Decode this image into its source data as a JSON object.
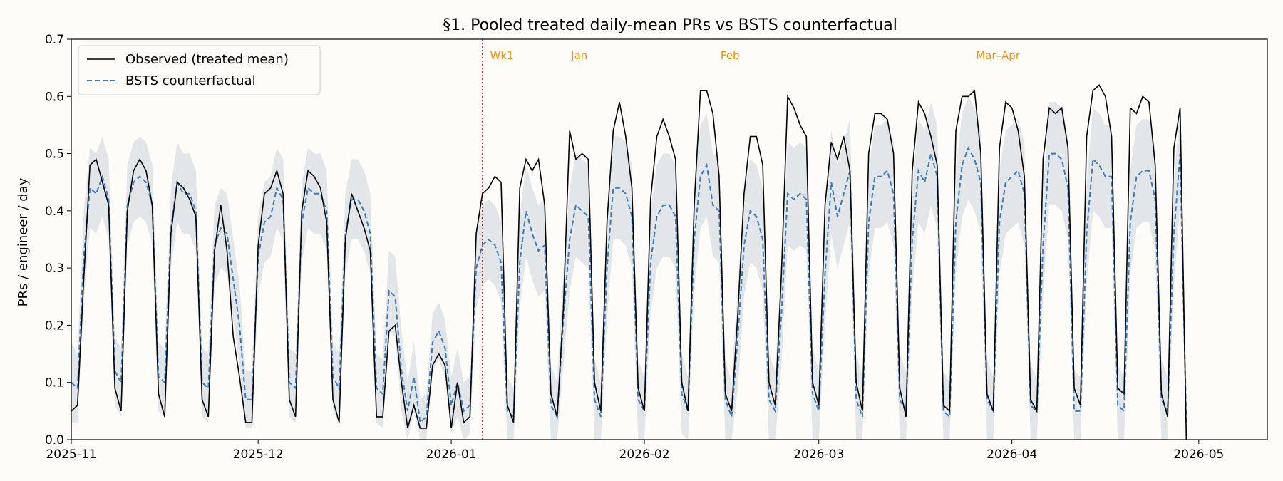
{
  "chart_data": {
    "type": "line",
    "title": "§1. Pooled treated daily-mean PRs vs BSTS counterfactual",
    "ylabel": "PRs / engineer / day",
    "xlabel": "",
    "xlim": [
      "2025-11-01",
      "2026-05-12"
    ],
    "ylim": [
      0,
      0.7
    ],
    "yticks": [
      0.0,
      0.1,
      0.2,
      0.3,
      0.4,
      0.5,
      0.6,
      0.7
    ],
    "yticklabels": [
      "0.0",
      "0.1",
      "0.2",
      "0.3",
      "0.4",
      "0.5",
      "0.6",
      "0.7"
    ],
    "xticks": [
      "2025-11-01",
      "2025-12-01",
      "2026-01-01",
      "2026-02-01",
      "2026-03-01",
      "2026-04-01",
      "2026-05-01"
    ],
    "xticklabels": [
      "2025-11",
      "2025-12",
      "2026-01",
      "2026-02",
      "2026-03",
      "2026-04",
      "2026-05"
    ],
    "grid": false,
    "legend_position": "top-left",
    "colors": {
      "observed": "#000000",
      "counterfactual": "#3d7ab8",
      "band": "#c7d0d8",
      "intervention": "#c62828",
      "annotation": "#f0920a"
    },
    "intervention_date": "2026-01-06",
    "annotations": [
      {
        "text": "Wk1",
        "date": "2026-01-07"
      },
      {
        "text": "Jan",
        "date": "2026-01-20"
      },
      {
        "text": "Feb",
        "date": "2026-02-13"
      },
      {
        "text": "Mar–Apr",
        "date": "2026-03-26"
      }
    ],
    "x_start": "2025-11-01",
    "series": [
      {
        "name": "Observed (treated mean)",
        "style": "solid",
        "values": [
          0.05,
          0.06,
          0.28,
          0.48,
          0.49,
          0.45,
          0.41,
          0.09,
          0.05,
          0.4,
          0.47,
          0.49,
          0.47,
          0.41,
          0.08,
          0.04,
          0.36,
          0.45,
          0.44,
          0.42,
          0.39,
          0.07,
          0.04,
          0.33,
          0.41,
          0.33,
          0.18,
          0.11,
          0.03,
          0.03,
          0.34,
          0.43,
          0.44,
          0.47,
          0.43,
          0.07,
          0.04,
          0.4,
          0.47,
          0.46,
          0.44,
          0.38,
          0.07,
          0.03,
          0.35,
          0.43,
          0.4,
          0.37,
          0.33,
          0.04,
          0.04,
          0.19,
          0.2,
          0.1,
          0.02,
          0.06,
          0.02,
          0.02,
          0.13,
          0.15,
          0.13,
          0.02,
          0.1,
          0.03,
          0.04,
          0.36,
          0.43,
          0.44,
          0.46,
          0.45,
          0.06,
          0.03,
          0.44,
          0.49,
          0.47,
          0.49,
          0.41,
          0.08,
          0.04,
          0.23,
          0.54,
          0.49,
          0.5,
          0.49,
          0.1,
          0.05,
          0.38,
          0.54,
          0.59,
          0.53,
          0.44,
          0.09,
          0.05,
          0.42,
          0.53,
          0.56,
          0.53,
          0.49,
          0.1,
          0.05,
          0.41,
          0.61,
          0.61,
          0.57,
          0.46,
          0.08,
          0.05,
          0.22,
          0.43,
          0.53,
          0.53,
          0.48,
          0.1,
          0.06,
          0.29,
          0.6,
          0.58,
          0.55,
          0.53,
          0.1,
          0.06,
          0.41,
          0.52,
          0.49,
          0.53,
          0.47,
          0.1,
          0.05,
          0.5,
          0.57,
          0.57,
          0.56,
          0.5,
          0.09,
          0.04,
          0.47,
          0.59,
          0.57,
          0.53,
          0.48,
          0.06,
          0.05,
          0.54,
          0.6,
          0.6,
          0.61,
          0.5,
          0.08,
          0.05,
          0.51,
          0.59,
          0.58,
          0.54,
          0.46,
          0.07,
          0.05,
          0.49,
          0.58,
          0.57,
          0.58,
          0.51,
          0.09,
          0.06,
          0.53,
          0.61,
          0.62,
          0.6,
          0.53,
          0.09,
          0.08,
          0.58,
          0.57,
          0.6,
          0.59,
          0.48,
          0.08,
          0.04,
          0.51,
          0.58,
          0.0
        ]
      },
      {
        "name": "BSTS counterfactual",
        "style": "dashed",
        "values": [
          0.1,
          0.09,
          0.32,
          0.44,
          0.43,
          0.46,
          0.42,
          0.12,
          0.1,
          0.41,
          0.45,
          0.46,
          0.45,
          0.41,
          0.11,
          0.1,
          0.37,
          0.45,
          0.43,
          0.43,
          0.4,
          0.1,
          0.09,
          0.34,
          0.37,
          0.36,
          0.28,
          0.2,
          0.07,
          0.07,
          0.32,
          0.38,
          0.39,
          0.44,
          0.42,
          0.1,
          0.09,
          0.38,
          0.44,
          0.43,
          0.43,
          0.4,
          0.11,
          0.09,
          0.36,
          0.42,
          0.42,
          0.4,
          0.36,
          0.09,
          0.08,
          0.26,
          0.25,
          0.12,
          0.05,
          0.11,
          0.03,
          0.04,
          0.17,
          0.19,
          0.16,
          0.06,
          0.1,
          0.05,
          0.06,
          0.3,
          0.34,
          0.35,
          0.34,
          0.31,
          0.05,
          0.04,
          0.31,
          0.4,
          0.36,
          0.33,
          0.34,
          0.06,
          0.04,
          0.21,
          0.35,
          0.41,
          0.4,
          0.39,
          0.07,
          0.04,
          0.3,
          0.44,
          0.44,
          0.43,
          0.39,
          0.07,
          0.05,
          0.31,
          0.39,
          0.41,
          0.41,
          0.39,
          0.08,
          0.05,
          0.35,
          0.46,
          0.48,
          0.41,
          0.4,
          0.07,
          0.04,
          0.18,
          0.34,
          0.4,
          0.39,
          0.35,
          0.07,
          0.05,
          0.22,
          0.43,
          0.42,
          0.43,
          0.42,
          0.08,
          0.05,
          0.29,
          0.45,
          0.39,
          0.43,
          0.47,
          0.07,
          0.04,
          0.38,
          0.46,
          0.46,
          0.47,
          0.43,
          0.07,
          0.05,
          0.35,
          0.47,
          0.45,
          0.5,
          0.46,
          0.05,
          0.04,
          0.38,
          0.48,
          0.51,
          0.49,
          0.45,
          0.07,
          0.05,
          0.38,
          0.45,
          0.46,
          0.47,
          0.43,
          0.06,
          0.05,
          0.34,
          0.5,
          0.5,
          0.49,
          0.44,
          0.05,
          0.05,
          0.36,
          0.49,
          0.48,
          0.46,
          0.46,
          0.06,
          0.05,
          0.38,
          0.46,
          0.47,
          0.47,
          0.42,
          0.07,
          0.05,
          0.36,
          0.5,
          0.03
        ]
      }
    ],
    "band_half_width": [
      0.07,
      0.06,
      0.08,
      0.07,
      0.07,
      0.07,
      0.07,
      0.06,
      0.06,
      0.07,
      0.07,
      0.07,
      0.07,
      0.07,
      0.06,
      0.06,
      0.07,
      0.07,
      0.07,
      0.07,
      0.07,
      0.06,
      0.06,
      0.07,
      0.07,
      0.07,
      0.07,
      0.07,
      0.05,
      0.05,
      0.07,
      0.07,
      0.07,
      0.07,
      0.07,
      0.06,
      0.06,
      0.07,
      0.07,
      0.07,
      0.07,
      0.07,
      0.06,
      0.06,
      0.07,
      0.07,
      0.07,
      0.07,
      0.07,
      0.06,
      0.06,
      0.07,
      0.07,
      0.07,
      0.05,
      0.06,
      0.04,
      0.04,
      0.05,
      0.05,
      0.05,
      0.05,
      0.06,
      0.05,
      0.05,
      0.07,
      0.07,
      0.07,
      0.07,
      0.07,
      0.06,
      0.05,
      0.08,
      0.08,
      0.08,
      0.08,
      0.08,
      0.07,
      0.06,
      0.08,
      0.09,
      0.09,
      0.09,
      0.09,
      0.07,
      0.06,
      0.09,
      0.09,
      0.09,
      0.09,
      0.09,
      0.07,
      0.06,
      0.09,
      0.09,
      0.09,
      0.09,
      0.09,
      0.07,
      0.06,
      0.09,
      0.09,
      0.09,
      0.09,
      0.09,
      0.07,
      0.06,
      0.09,
      0.09,
      0.09,
      0.09,
      0.09,
      0.08,
      0.07,
      0.09,
      0.09,
      0.09,
      0.09,
      0.09,
      0.08,
      0.07,
      0.09,
      0.09,
      0.09,
      0.09,
      0.09,
      0.08,
      0.07,
      0.09,
      0.09,
      0.09,
      0.09,
      0.09,
      0.08,
      0.07,
      0.09,
      0.09,
      0.09,
      0.09,
      0.09,
      0.07,
      0.06,
      0.09,
      0.09,
      0.09,
      0.09,
      0.09,
      0.07,
      0.06,
      0.09,
      0.09,
      0.09,
      0.09,
      0.09,
      0.07,
      0.06,
      0.09,
      0.09,
      0.09,
      0.09,
      0.09,
      0.07,
      0.06,
      0.09,
      0.09,
      0.09,
      0.09,
      0.09,
      0.07,
      0.06,
      0.09,
      0.09,
      0.09,
      0.09,
      0.09,
      0.07,
      0.06,
      0.09,
      0.09,
      0.07
    ]
  }
}
